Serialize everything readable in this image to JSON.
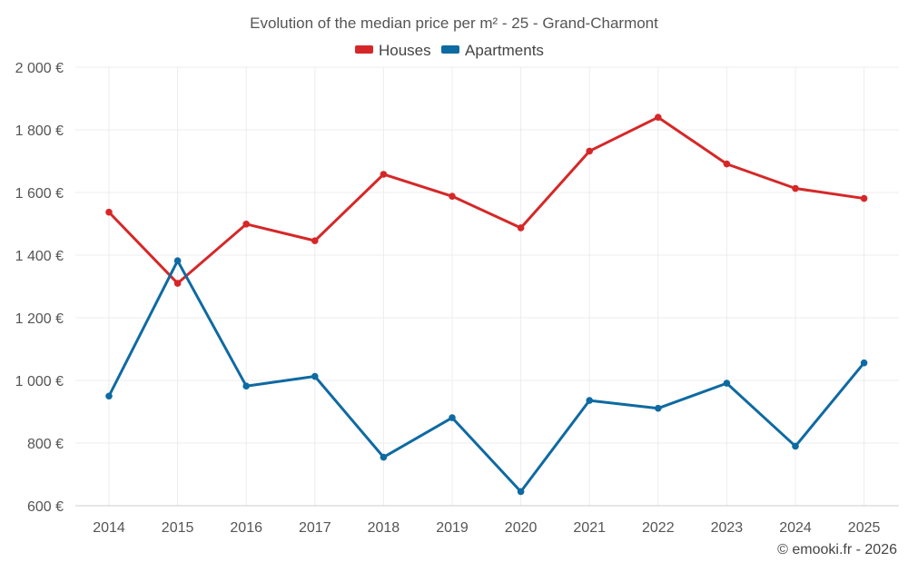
{
  "chart_data": {
    "type": "line",
    "title": "Evolution of the median price per m² - 25 - Grand-Charmont",
    "categories": [
      "2014",
      "2015",
      "2016",
      "2017",
      "2018",
      "2019",
      "2020",
      "2021",
      "2022",
      "2023",
      "2024",
      "2025"
    ],
    "series": [
      {
        "name": "Houses",
        "color": "#d62728",
        "values": [
          1537,
          1310,
          1499,
          1446,
          1658,
          1588,
          1487,
          1732,
          1840,
          1691,
          1613,
          1581
        ]
      },
      {
        "name": "Apartments",
        "color": "#0e6aa2",
        "values": [
          950,
          1382,
          982,
          1013,
          755,
          881,
          645,
          936,
          911,
          991,
          790,
          1056
        ]
      }
    ],
    "ylim": [
      600,
      2000
    ],
    "yticks": [
      600,
      800,
      1000,
      1200,
      1400,
      1600,
      1800,
      2000
    ],
    "ytick_labels": [
      "600 €",
      "800 €",
      "1 000 €",
      "1 200 €",
      "1 400 €",
      "1 600 €",
      "1 800 €",
      "2 000 €"
    ],
    "xlabel": "",
    "ylabel": "",
    "grid": true,
    "legend_position": "top-center"
  },
  "copyright": "© emooki.fr - 2026"
}
